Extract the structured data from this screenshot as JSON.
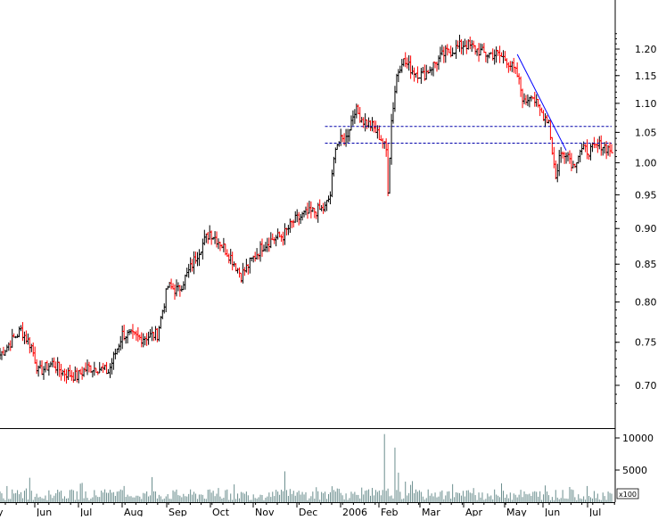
{
  "chart_data": [
    {
      "type": "ohlc",
      "role": "price",
      "title": "",
      "xlabel": "",
      "ylabel": "",
      "ylim": [
        0.66,
        1.25
      ],
      "y_scale": "log",
      "y_ticks": [
        "0.70",
        "0.75",
        "0.80",
        "0.85",
        "0.90",
        "0.95",
        "1.00",
        "1.05",
        "1.10",
        "1.15",
        "1.20"
      ],
      "x_ticks": [
        "Jun",
        "Jul",
        "Aug",
        "Sep",
        "Oct",
        "Nov",
        "Dec",
        "2006",
        "Feb",
        "Mar",
        "Apr",
        "May",
        "Jun",
        "Jul"
      ],
      "x_start_fragment": "y",
      "colors": {
        "up": "#000000",
        "down": "#ff0000",
        "trendline": "#0000ff",
        "support": "#0000aa"
      },
      "series": [
        {
          "name": "",
          "anchors": [
            [
              0,
              0.735
            ],
            [
              6,
              0.75
            ],
            [
              12,
              0.765
            ],
            [
              18,
              0.745
            ],
            [
              22,
              0.715
            ],
            [
              26,
              0.72
            ],
            [
              30,
              0.725
            ],
            [
              36,
              0.715
            ],
            [
              44,
              0.71
            ],
            [
              50,
              0.72
            ],
            [
              56,
              0.72
            ],
            [
              62,
              0.715
            ],
            [
              70,
              0.76
            ],
            [
              80,
              0.755
            ],
            [
              90,
              0.76
            ],
            [
              96,
              0.82
            ],
            [
              102,
              0.815
            ],
            [
              108,
              0.84
            ],
            [
              114,
              0.87
            ],
            [
              120,
              0.895
            ],
            [
              126,
              0.88
            ],
            [
              132,
              0.86
            ],
            [
              138,
              0.835
            ],
            [
              144,
              0.855
            ],
            [
              150,
              0.875
            ],
            [
              156,
              0.885
            ],
            [
              162,
              0.89
            ],
            [
              168,
              0.91
            ],
            [
              174,
              0.92
            ],
            [
              180,
              0.925
            ],
            [
              186,
              0.93
            ],
            [
              189,
              0.95
            ],
            [
              192,
              1.03
            ],
            [
              198,
              1.04
            ],
            [
              203,
              1.09
            ],
            [
              208,
              1.07
            ],
            [
              213,
              1.06
            ],
            [
              218,
              1.04
            ],
            [
              221,
              1.02
            ],
            [
              222,
              0.96
            ],
            [
              224,
              1.07
            ],
            [
              227,
              1.15
            ],
            [
              230,
              1.18
            ],
            [
              236,
              1.16
            ],
            [
              242,
              1.15
            ],
            [
              248,
              1.17
            ],
            [
              254,
              1.19
            ],
            [
              260,
              1.2
            ],
            [
              266,
              1.21
            ],
            [
              272,
              1.2
            ],
            [
              278,
              1.19
            ],
            [
              284,
              1.19
            ],
            [
              290,
              1.18
            ],
            [
              296,
              1.15
            ],
            [
              300,
              1.1
            ],
            [
              304,
              1.12
            ],
            [
              308,
              1.09
            ],
            [
              314,
              1.07
            ],
            [
              316,
              1.02
            ],
            [
              318,
              0.975
            ],
            [
              320,
              1.01
            ],
            [
              324,
              1.02
            ],
            [
              328,
              0.995
            ],
            [
              332,
              1.02
            ],
            [
              338,
              1.02
            ],
            [
              344,
              1.03
            ],
            [
              350,
              1.02
            ]
          ]
        }
      ],
      "trendline": {
        "from": [
          296,
          1.19
        ],
        "to": [
          324,
          1.02
        ]
      },
      "support_lines": [
        {
          "y": 1.06,
          "x_from": 186,
          "x_to": 350
        },
        {
          "y": 1.032,
          "x_from": 186,
          "x_to": 350
        }
      ]
    },
    {
      "type": "bar",
      "role": "volume",
      "y_ticks": [
        "5000",
        "10000"
      ],
      "units_label": "x100",
      "ylim": [
        0,
        11000
      ],
      "color": "#6b8e8e",
      "spikes": [
        [
          17,
          3800
        ],
        [
          87,
          3900
        ],
        [
          163,
          4800
        ],
        [
          220,
          10600
        ],
        [
          226,
          8500
        ],
        [
          228,
          4600
        ],
        [
          232,
          3200
        ]
      ]
    }
  ]
}
